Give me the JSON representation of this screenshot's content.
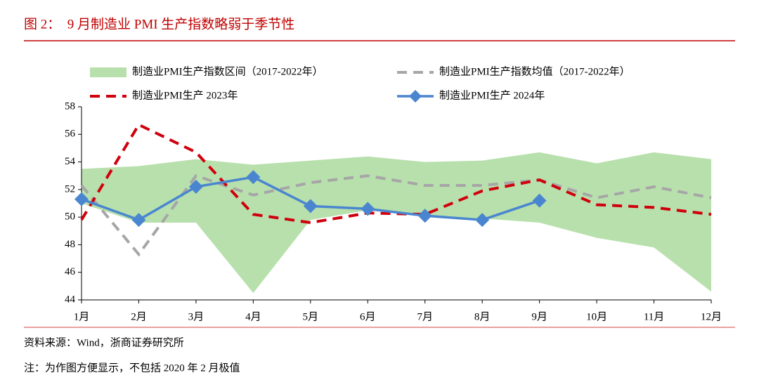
{
  "chart_data": {
    "type": "line",
    "title": "图 2：  9 月制造业 PMI 生产指数略弱于季节性",
    "source": "资料来源：Wind，浙商证券研究所",
    "note": "注：为作图方便显示，不包括 2020 年 2 月极值",
    "categories": [
      "1月",
      "2月",
      "3月",
      "4月",
      "5月",
      "6月",
      "7月",
      "8月",
      "9月",
      "10月",
      "11月",
      "12月"
    ],
    "band": {
      "name": "制造业PMI生产指数区间（2017-2022年）",
      "color": "#b8e0ad",
      "upper": [
        53.5,
        53.7,
        54.2,
        53.8,
        54.1,
        54.4,
        54.0,
        54.1,
        54.7,
        53.9,
        54.7,
        54.2
      ],
      "lower": [
        51.0,
        49.6,
        49.6,
        44.5,
        49.8,
        50.5,
        50.1,
        49.9,
        49.6,
        48.5,
        47.8,
        44.6
      ]
    },
    "series": [
      {
        "name": "制造业PMI生产指数均值（2017-2022年）",
        "color": "#a6a6a6",
        "style": "dashed",
        "values": [
          52.3,
          47.3,
          53.0,
          51.6,
          52.5,
          53.0,
          52.3,
          52.3,
          52.7,
          51.4,
          52.2,
          51.4
        ]
      },
      {
        "name": "制造业PMI生产 2023年",
        "color": "#d0000d",
        "style": "dashed",
        "values": [
          49.8,
          56.7,
          54.7,
          50.2,
          49.6,
          50.3,
          50.2,
          51.9,
          52.7,
          50.9,
          50.7,
          50.2
        ]
      },
      {
        "name": "制造业PMI生产 2024年",
        "color": "#4a86cf",
        "style": "solid",
        "marker": "diamond",
        "values": [
          51.3,
          49.8,
          52.2,
          52.9,
          50.8,
          50.6,
          50.1,
          49.8,
          51.2,
          null,
          null,
          null
        ]
      }
    ],
    "ylim": [
      44,
      58
    ],
    "yticks": [
      44,
      46,
      48,
      50,
      52,
      54,
      56,
      58
    ]
  }
}
